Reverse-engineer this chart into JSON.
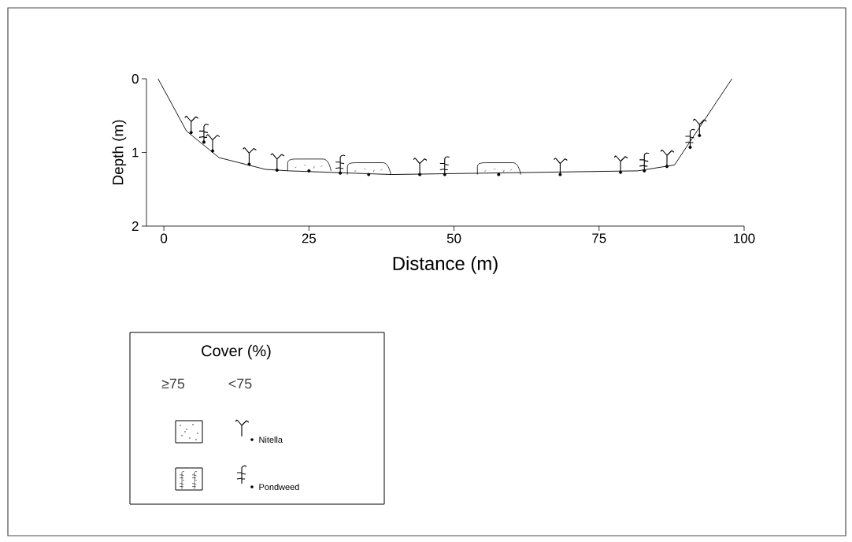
{
  "chart_data": {
    "type": "line",
    "xlabel": "Distance (m)",
    "ylabel": "Depth (m)",
    "legend_title": "Cover (%)",
    "annotations": [
      "≥75",
      "<75"
    ],
    "xlim": [
      -3,
      100
    ],
    "xticks": [
      0,
      25,
      50,
      75,
      100
    ],
    "ylim": [
      2,
      0
    ],
    "yticks": [
      0,
      1,
      2
    ],
    "legend": "bottom left",
    "series": [
      {
        "color": "#000000",
        "x": [
          -1,
          3.9,
          9.5,
          17.5,
          21.5,
          39.2,
          81.7,
          88.0,
          97.9
        ],
        "values": [
          0,
          0.71,
          1.07,
          1.23,
          1.25,
          1.3,
          1.25,
          1.17,
          0
        ]
      },
      {
        "type": "scatter",
        "color": "#000000",
        "x": [
          25.0,
          35.3,
          57.7
        ],
        "values": [
          1.25,
          1.3,
          1.3
        ]
      },
      {
        "type": "scatter",
        "name": "Nitella",
        "color": "#000000",
        "x": [
          4.7,
          8.4,
          14.7,
          19.5,
          44.1,
          68.3,
          78.7,
          86.7,
          92.3
        ],
        "values": [
          0.73,
          0.98,
          1.16,
          1.24,
          1.3,
          1.3,
          1.27,
          1.19,
          0.77
        ]
      },
      {
        "type": "scatter",
        "name": "Pondweed",
        "color": "#000000",
        "x": [
          6.9,
          30.4,
          48.4,
          82.8,
          90.7
        ],
        "values": [
          0.86,
          1.28,
          1.3,
          1.25,
          0.93
        ]
      }
    ]
  }
}
